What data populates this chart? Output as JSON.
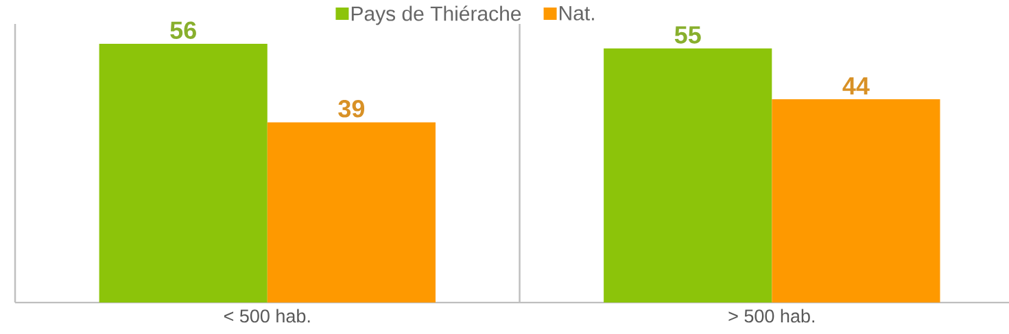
{
  "chart_data": {
    "type": "bar",
    "categories": [
      "< 500 hab.",
      "> 500 hab."
    ],
    "series": [
      {
        "name": "Pays de Thiérache",
        "color": "#8cc40a",
        "values": [
          56,
          55
        ]
      },
      {
        "name": "Nat.",
        "color": "#fe9900",
        "values": [
          39,
          44
        ]
      }
    ],
    "data_labels": true,
    "legend": "top"
  }
}
